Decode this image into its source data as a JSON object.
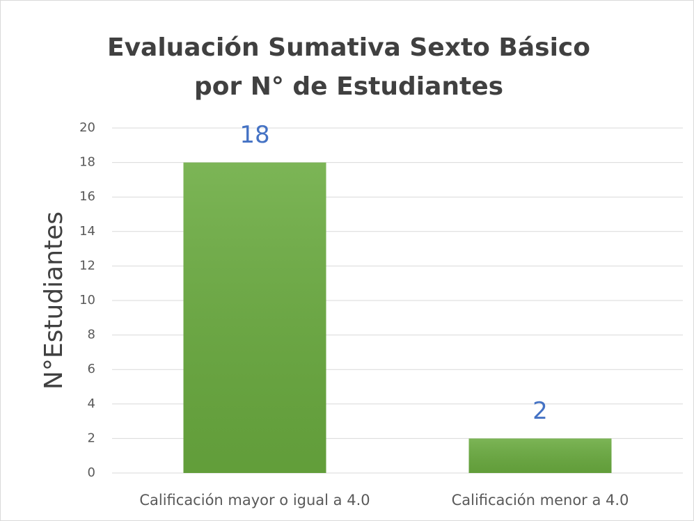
{
  "chart_data": {
    "type": "bar",
    "title": "Evaluación Sumativa Sexto Básico por N° de Estudiantes",
    "y_label": "N°Estudiantes",
    "categories": [
      "Calificación mayor o igual a 4.0",
      "Calificación menor a 4.0"
    ],
    "values": [
      18,
      2
    ],
    "color": "#6aab3f",
    "label_color": "#4472c4",
    "ylim": [
      0,
      20
    ],
    "yticks": [
      0,
      2,
      4,
      6,
      8,
      10,
      12,
      14,
      16,
      18,
      20
    ],
    "grid": true
  }
}
